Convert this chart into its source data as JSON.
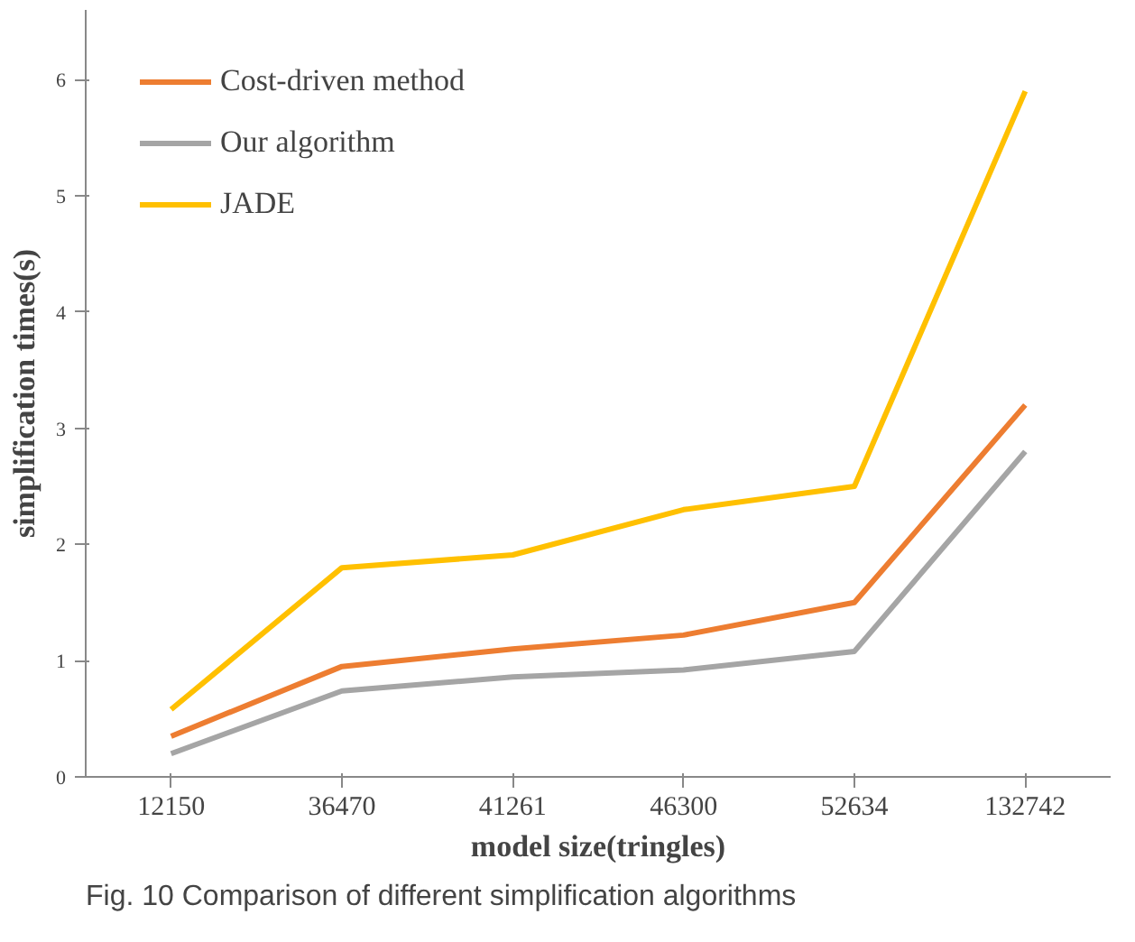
{
  "chart_data": {
    "type": "line",
    "xlabel": "model size(tringles)",
    "ylabel": "simplification times(s)",
    "categories": [
      "12150",
      "36470",
      "41261",
      "46300",
      "52634",
      "132742"
    ],
    "series": [
      {
        "name": "Cost-driven method",
        "color": "#ed7d31",
        "values": [
          0.35,
          0.95,
          1.1,
          1.22,
          1.5,
          3.2
        ]
      },
      {
        "name": "Our algorithm",
        "color": "#a5a5a5",
        "values": [
          0.2,
          0.74,
          0.86,
          0.92,
          1.08,
          2.8
        ]
      },
      {
        "name": "JADE",
        "color": "#ffc000",
        "values": [
          0.58,
          1.8,
          1.91,
          2.3,
          2.5,
          5.9
        ]
      }
    ],
    "ylim": [
      0,
      6.6
    ],
    "yticks": [
      0,
      1,
      2,
      3,
      4,
      5,
      6
    ],
    "grid": false,
    "legend": "top left",
    "marker": "none",
    "line_style": "solid",
    "annotations": [
      "Fig. 10 Comparison of different simplification algorithms"
    ]
  }
}
